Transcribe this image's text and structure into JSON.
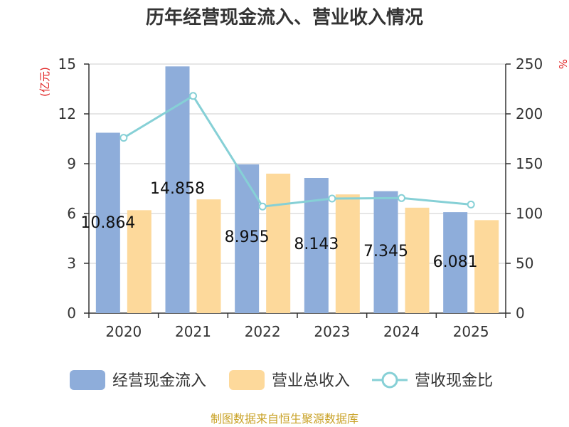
{
  "chart_data": {
    "type": "bar",
    "title": "历年经营现金流入、营业收入情况",
    "categories": [
      "2020",
      "2021",
      "2022",
      "2023",
      "2024",
      "2025"
    ],
    "y_left": {
      "unit": "(亿元)",
      "range": [
        0,
        15
      ],
      "ticks": [
        0,
        3,
        6,
        9,
        12,
        15
      ]
    },
    "y_right": {
      "unit": "%",
      "range": [
        0,
        250
      ],
      "ticks": [
        0,
        50,
        100,
        150,
        200,
        250
      ]
    },
    "series": [
      {
        "name": "经营现金流入",
        "type": "bar",
        "axis": "left",
        "color": "#8eadda",
        "values": [
          10.864,
          14.858,
          8.955,
          8.143,
          7.345,
          6.081
        ],
        "labels": [
          "10.864",
          "14.858",
          "8.955",
          "8.143",
          "7.345",
          "6.081"
        ]
      },
      {
        "name": "营业总收入",
        "type": "bar",
        "axis": "left",
        "color": "#fdd99b",
        "values": [
          6.2,
          6.85,
          8.4,
          7.15,
          6.35,
          5.6
        ]
      },
      {
        "name": "营收现金比",
        "type": "line",
        "axis": "right",
        "color": "#86d0d6",
        "values": [
          176,
          218,
          107,
          115,
          115.5,
          109
        ]
      }
    ],
    "grid": true,
    "legend_position": "bottom"
  },
  "footer": {
    "source": "制图数据来自恒生聚源数据库"
  }
}
